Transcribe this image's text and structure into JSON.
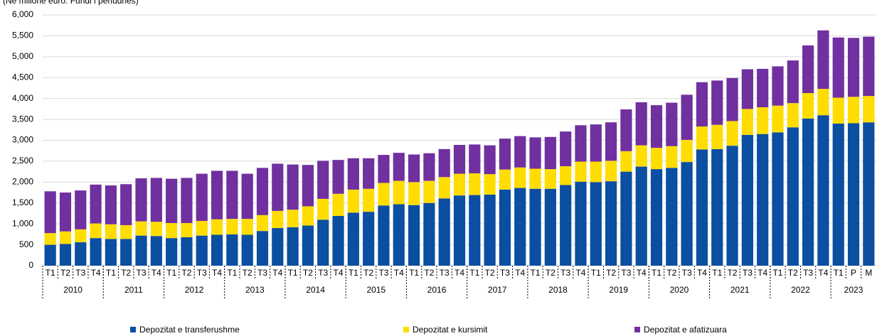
{
  "chart_data": {
    "type": "stacked_bar",
    "title": "(Në milionë euro. Fundi i periudhës)",
    "categories": [
      "T1",
      "T2",
      "T3",
      "T4",
      "T1",
      "T2",
      "T3",
      "T4",
      "T1",
      "T2",
      "T3",
      "T4",
      "T1",
      "T2",
      "T3",
      "T4",
      "T1",
      "T2",
      "T3",
      "T4",
      "T1",
      "T2",
      "T3",
      "T4",
      "T1",
      "T2",
      "T3",
      "T4",
      "T1",
      "T2",
      "T3",
      "T4",
      "T1",
      "T2",
      "T3",
      "T4",
      "T1",
      "T2",
      "T3",
      "T4",
      "T1",
      "T2",
      "T3",
      "T4",
      "T1",
      "T2",
      "T3",
      "T4",
      "T1",
      "T2",
      "T3",
      "T4",
      "T1",
      "P",
      "M"
    ],
    "groups": [
      "2010",
      "2011",
      "2012",
      "2013",
      "2014",
      "2015",
      "2016",
      "2017",
      "2018",
      "2019",
      "2020",
      "2021",
      "2022",
      "2023"
    ],
    "series": [
      {
        "name": "Depozitat e transferushme",
        "color": "#0b4ea2",
        "values": [
          500,
          520,
          560,
          660,
          640,
          640,
          720,
          710,
          660,
          680,
          720,
          740,
          750,
          740,
          830,
          900,
          920,
          960,
          1100,
          1190,
          1270,
          1290,
          1440,
          1470,
          1450,
          1500,
          1610,
          1680,
          1690,
          1700,
          1820,
          1860,
          1840,
          1840,
          1930,
          2010,
          2000,
          2020,
          2250,
          2370,
          2310,
          2340,
          2480,
          2780,
          2790,
          2870,
          3130,
          3150,
          3190,
          3310,
          3520,
          3600,
          3400,
          3410,
          3430
        ]
      },
      {
        "name": "Depozitat e kursimit",
        "color": "#ffdd00",
        "values": [
          280,
          300,
          310,
          350,
          350,
          330,
          340,
          340,
          360,
          340,
          350,
          370,
          370,
          380,
          380,
          410,
          420,
          460,
          500,
          530,
          550,
          550,
          540,
          560,
          550,
          530,
          510,
          520,
          520,
          490,
          480,
          490,
          480,
          470,
          450,
          480,
          490,
          490,
          490,
          510,
          510,
          520,
          530,
          550,
          580,
          590,
          620,
          640,
          640,
          580,
          610,
          630,
          620,
          630,
          630
        ]
      },
      {
        "name": "Depozitat e afatizuara",
        "color": "#7030a0",
        "values": [
          1000,
          930,
          930,
          930,
          930,
          980,
          1030,
          1050,
          1060,
          1080,
          1130,
          1160,
          1150,
          1080,
          1130,
          1130,
          1080,
          990,
          910,
          810,
          750,
          730,
          670,
          670,
          660,
          660,
          670,
          690,
          690,
          690,
          740,
          750,
          750,
          770,
          830,
          870,
          890,
          920,
          1000,
          1030,
          1020,
          1040,
          1080,
          1060,
          1060,
          1030,
          950,
          920,
          940,
          1020,
          1140,
          1400,
          1440,
          1410,
          1420
        ]
      }
    ],
    "ylim": [
      0,
      6000
    ],
    "yticks": [
      0,
      {
        "value": 500,
        "label": "500"
      },
      {
        "value": 1000,
        "label": "1,000"
      },
      {
        "value": 1500,
        "label": "1,500"
      },
      {
        "value": 2000,
        "label": "2,000"
      },
      {
        "value": 2500,
        "label": "2,500"
      },
      {
        "value": 3000,
        "label": "3,000"
      },
      {
        "value": 3500,
        "label": "3,500"
      },
      {
        "value": 4000,
        "label": "4,000"
      },
      {
        "value": 4500,
        "label": "4,500"
      },
      {
        "value": 5000,
        "label": "5,000"
      },
      {
        "value": 5500,
        "label": "5,500"
      },
      {
        "value": 6000,
        "label": "6,000"
      }
    ],
    "grid": true,
    "legend": "bottom"
  }
}
